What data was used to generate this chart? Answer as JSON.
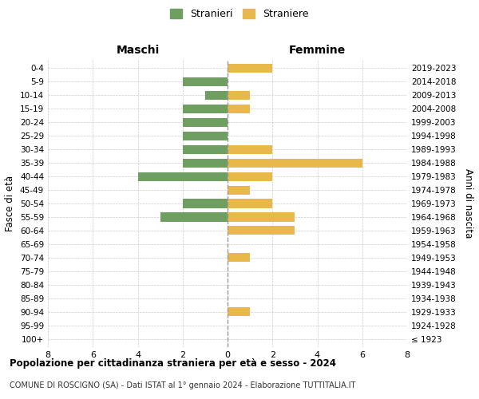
{
  "age_groups": [
    "100+",
    "95-99",
    "90-94",
    "85-89",
    "80-84",
    "75-79",
    "70-74",
    "65-69",
    "60-64",
    "55-59",
    "50-54",
    "45-49",
    "40-44",
    "35-39",
    "30-34",
    "25-29",
    "20-24",
    "15-19",
    "10-14",
    "5-9",
    "0-4"
  ],
  "birth_years": [
    "≤ 1923",
    "1924-1928",
    "1929-1933",
    "1934-1938",
    "1939-1943",
    "1944-1948",
    "1949-1953",
    "1954-1958",
    "1959-1963",
    "1964-1968",
    "1969-1973",
    "1974-1978",
    "1979-1983",
    "1984-1988",
    "1989-1993",
    "1994-1998",
    "1999-2003",
    "2004-2008",
    "2009-2013",
    "2014-2018",
    "2019-2023"
  ],
  "maschi": [
    0,
    0,
    0,
    0,
    0,
    0,
    0,
    0,
    0,
    3,
    2,
    0,
    4,
    2,
    2,
    2,
    2,
    2,
    1,
    2,
    0
  ],
  "femmine": [
    0,
    0,
    1,
    0,
    0,
    0,
    1,
    0,
    3,
    3,
    2,
    1,
    2,
    6,
    2,
    0,
    0,
    1,
    1,
    0,
    2
  ],
  "maschi_color": "#6e9e60",
  "femmine_color": "#e8b84b",
  "title_main": "Popolazione per cittadinanza straniera per età e sesso - 2024",
  "title_sub": "COMUNE DI ROSCIGNO (SA) - Dati ISTAT al 1° gennaio 2024 - Elaborazione TUTTITALIA.IT",
  "xlabel_left": "Maschi",
  "xlabel_right": "Femmine",
  "ylabel_left": "Fasce di età",
  "ylabel_right": "Anni di nascita",
  "legend_maschi": "Stranieri",
  "legend_femmine": "Straniere",
  "xlim": 8,
  "bg_color": "#ffffff",
  "grid_color": "#cccccc"
}
